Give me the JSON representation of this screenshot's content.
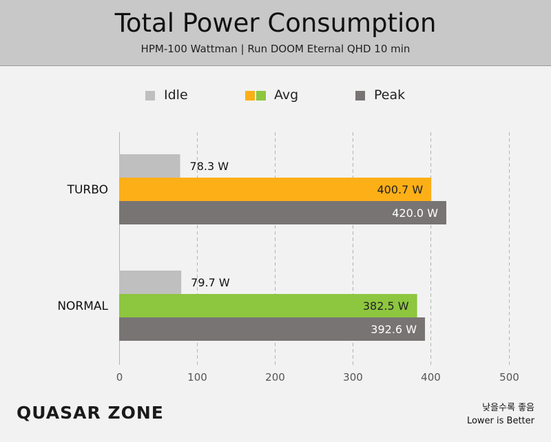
{
  "header": {
    "title": "Total Power Consumption",
    "subtitle": "HPM-100 Wattman  |  Run DOOM Eternal QHD 10 min"
  },
  "legend": {
    "idle": "Idle",
    "avg": "Avg",
    "peak": "Peak"
  },
  "colors": {
    "idle": "#c0bfbf",
    "avg_turbo": "#fcaf17",
    "avg_normal": "#8dc63f",
    "peak": "#787474",
    "grid": "#b3b3b3",
    "header_bg": "#c8c8c8",
    "background": "#f2f2f2"
  },
  "chart_data": {
    "type": "bar",
    "orientation": "horizontal",
    "title": "Total Power Consumption",
    "subtitle": "HPM-100 Wattman  |  Run DOOM Eternal QHD 10 min",
    "categories": [
      "TURBO",
      "NORMAL"
    ],
    "series": [
      {
        "name": "Idle",
        "values": [
          78.3,
          79.7
        ]
      },
      {
        "name": "Avg",
        "values": [
          400.7,
          382.5
        ]
      },
      {
        "name": "Peak",
        "values": [
          420.0,
          392.6
        ]
      }
    ],
    "data_labels": [
      [
        "78.3 W",
        "400.7 W",
        "420.0 W"
      ],
      [
        "79.7 W",
        "382.5 W",
        "392.6 W"
      ]
    ],
    "xlim": [
      0,
      500
    ],
    "xticks": [
      "0",
      "100",
      "200",
      "300",
      "400",
      "500"
    ],
    "grid": "vertical dashed",
    "legend_position": "top-center"
  },
  "footer": {
    "logo": "QUASAR ZONE",
    "note_ko": "낮을수록 좋음",
    "note_en": "Lower is Better"
  }
}
